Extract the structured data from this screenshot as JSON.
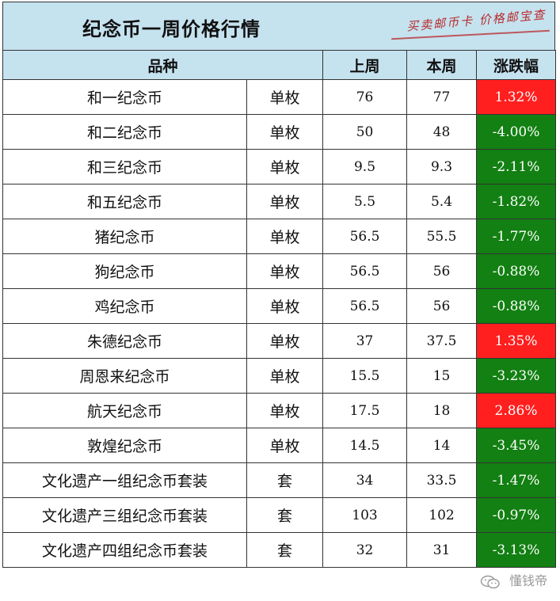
{
  "title": "纪念币一周价格行情",
  "stamp_text": "买卖邮币卡 价格邮宝查",
  "headers": {
    "variety": "品种",
    "last_week": "上周",
    "this_week": "本周",
    "change": "涨跌幅"
  },
  "colors": {
    "up": "#ff1f1f",
    "down": "#128012",
    "header_bg": "#c5e2ef"
  },
  "rows": [
    {
      "name": "和一纪念币",
      "unit": "单枚",
      "last": "76",
      "current": "77",
      "change": "1.32%",
      "direction": "up"
    },
    {
      "name": "和二纪念币",
      "unit": "单枚",
      "last": "50",
      "current": "48",
      "change": "-4.00%",
      "direction": "down"
    },
    {
      "name": "和三纪念币",
      "unit": "单枚",
      "last": "9.5",
      "current": "9.3",
      "change": "-2.11%",
      "direction": "down"
    },
    {
      "name": "和五纪念币",
      "unit": "单枚",
      "last": "5.5",
      "current": "5.4",
      "change": "-1.82%",
      "direction": "down"
    },
    {
      "name": "猪纪念币",
      "unit": "单枚",
      "last": "56.5",
      "current": "55.5",
      "change": "-1.77%",
      "direction": "down"
    },
    {
      "name": "狗纪念币",
      "unit": "单枚",
      "last": "56.5",
      "current": "56",
      "change": "-0.88%",
      "direction": "down"
    },
    {
      "name": "鸡纪念币",
      "unit": "单枚",
      "last": "56.5",
      "current": "56",
      "change": "-0.88%",
      "direction": "down"
    },
    {
      "name": "朱德纪念币",
      "unit": "单枚",
      "last": "37",
      "current": "37.5",
      "change": "1.35%",
      "direction": "up"
    },
    {
      "name": "周恩来纪念币",
      "unit": "单枚",
      "last": "15.5",
      "current": "15",
      "change": "-3.23%",
      "direction": "down"
    },
    {
      "name": "航天纪念币",
      "unit": "单枚",
      "last": "17.5",
      "current": "18",
      "change": "2.86%",
      "direction": "up"
    },
    {
      "name": "敦煌纪念币",
      "unit": "单枚",
      "last": "14.5",
      "current": "14",
      "change": "-3.45%",
      "direction": "down"
    },
    {
      "name": "文化遗产一组纪念币套装",
      "unit": "套",
      "last": "34",
      "current": "33.5",
      "change": "-1.47%",
      "direction": "down"
    },
    {
      "name": "文化遗产三组纪念币套装",
      "unit": "套",
      "last": "103",
      "current": "102",
      "change": "-0.97%",
      "direction": "down"
    },
    {
      "name": "文化遗产四组纪念币套装",
      "unit": "套",
      "last": "32",
      "current": "31",
      "change": "-3.13%",
      "direction": "down"
    }
  ],
  "watermark": {
    "text": "懂钱帝",
    "icon": "wechat-icon"
  }
}
